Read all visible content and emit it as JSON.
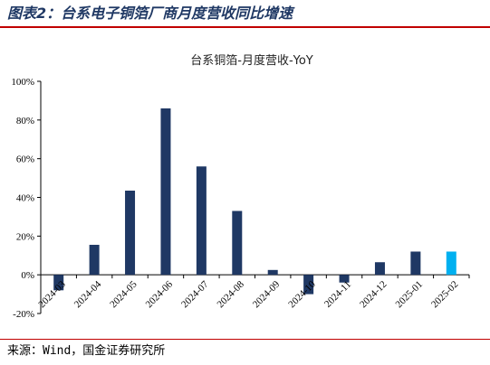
{
  "header": {
    "figure_title": "图表2：台系电子铜箔厂商月度营收同比增速"
  },
  "footer": {
    "source": "来源：Wind，国金证券研究所"
  },
  "chart_data": {
    "type": "bar",
    "title": "台系铜箔-月度营收-YoY",
    "xlabel": "",
    "ylabel": "",
    "categories": [
      "2024-03",
      "2024-04",
      "2024-05",
      "2024-06",
      "2024-07",
      "2024-08",
      "2024-09",
      "2024-10",
      "2024-11",
      "2024-12",
      "2025-01",
      "2025-02"
    ],
    "values": [
      -8,
      15.5,
      43.5,
      86,
      56,
      33,
      2.5,
      -10,
      -4,
      6.5,
      12,
      12
    ],
    "ylim": [
      -20,
      100
    ],
    "y_ticks": [
      -20,
      0,
      20,
      40,
      60,
      80,
      100
    ],
    "y_tick_labels": [
      "-20%",
      "0%",
      "20%",
      "40%",
      "60%",
      "80%",
      "100%"
    ],
    "grid": false,
    "colors": {
      "bar": "#1f3864",
      "highlight_bar": "#00b0f0",
      "highlight_index": 11
    }
  }
}
